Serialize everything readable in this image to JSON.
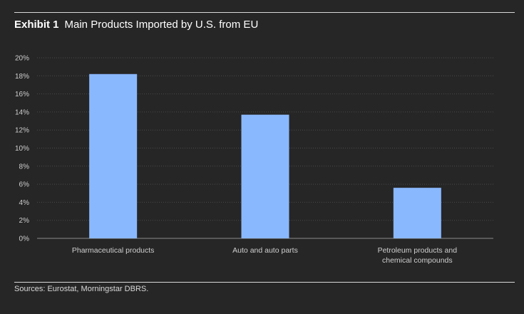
{
  "header": {
    "exhibit_label": "Exhibit 1",
    "title": "Main Products Imported by U.S. from EU"
  },
  "footer": {
    "source": "Sources: Eurostat, Morningstar DBRS."
  },
  "colors": {
    "background": "#262626",
    "bar": "#8ab8ff",
    "grid": "#4a4a4a",
    "text": "#cfcfcf"
  },
  "chart_data": {
    "type": "bar",
    "title": "Main Products Imported by U.S. from EU",
    "categories": [
      [
        "Pharmaceutical products"
      ],
      [
        "Auto and auto parts"
      ],
      [
        "Petroleum products and",
        "chemical compounds"
      ]
    ],
    "values": [
      18.2,
      13.7,
      5.6
    ],
    "ylim": [
      0,
      20
    ],
    "yticks": [
      0,
      2,
      4,
      6,
      8,
      10,
      12,
      14,
      16,
      18,
      20
    ],
    "ytick_suffix": "%",
    "xlabel": "",
    "ylabel": "",
    "grid": true
  }
}
